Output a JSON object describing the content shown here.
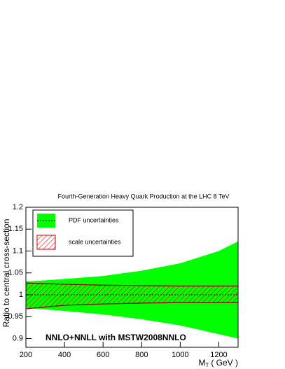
{
  "chart_data": {
    "type": "band",
    "title": "Fourth-Generation Heavy Quark Production at the LHC 8 TeV",
    "xlabel": "M",
    "xlabel_sub": "T",
    "xlabel_unit": "( GeV )",
    "ylabel": "Ratio to central cross-section",
    "annotation": "NNLO+NNLL with MSTW2008NNLO",
    "x": [
      200,
      400,
      600,
      800,
      1000,
      1200,
      1300
    ],
    "series": [
      {
        "name": "PDF uncertainties",
        "color": "#00ff00",
        "upper": [
          1.03,
          1.036,
          1.043,
          1.055,
          1.072,
          1.1,
          1.122
        ],
        "lower": [
          0.97,
          0.963,
          0.955,
          0.944,
          0.93,
          0.91,
          0.9
        ]
      },
      {
        "name": "scale uncertainties",
        "color": "#cc0000",
        "upper": [
          1.027,
          1.024,
          1.022,
          1.021,
          1.02,
          1.02,
          1.02
        ],
        "lower": [
          0.968,
          0.976,
          0.979,
          0.981,
          0.982,
          0.982,
          0.982
        ]
      }
    ],
    "reference_line": 1,
    "xlim": [
      200,
      1300
    ],
    "ylim": [
      0.88,
      1.2
    ],
    "xticks": [
      200,
      400,
      600,
      800,
      1000,
      1200
    ],
    "yticks": [
      0.9,
      0.95,
      1,
      1.05,
      1.1,
      1.15,
      1.2
    ],
    "legend": "top-left"
  }
}
